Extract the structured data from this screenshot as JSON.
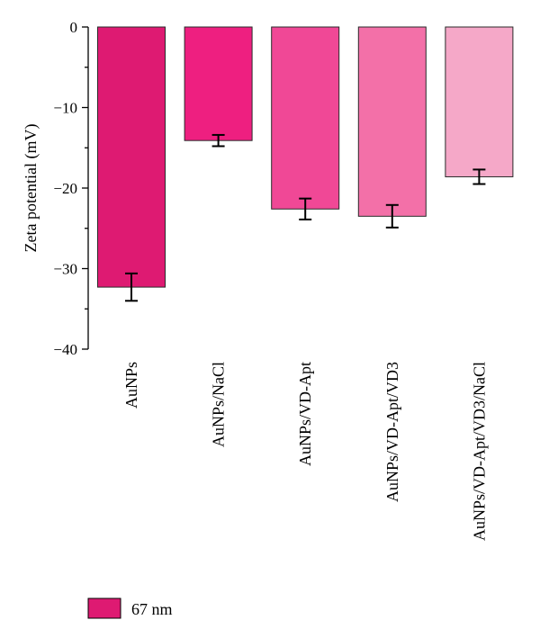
{
  "chart_data": {
    "type": "bar",
    "categories": [
      "AuNPs",
      "AuNPs/NaCl",
      "AuNPs/VD-Apt",
      "AuNPs/VD-Apt/VD3",
      "AuNPs/VD-Apt/VD3/NaCl"
    ],
    "series": [
      {
        "name": "67 nm",
        "values": [
          -32.3,
          -14.1,
          -22.6,
          -23.5,
          -18.6
        ],
        "errors": [
          1.7,
          0.7,
          1.3,
          1.4,
          0.9
        ],
        "colors": [
          "#de1a72",
          "#ee1f80",
          "#f04896",
          "#f370a8",
          "#f5a8c8"
        ]
      }
    ],
    "xlabel": "",
    "ylabel": "Zeta potential (mV)",
    "ylim": [
      -40,
      0
    ],
    "yticks": [
      0,
      -10,
      -20,
      -30,
      -40
    ],
    "ytick_labels": [
      "0",
      "−10",
      "−20",
      "−30",
      "−40"
    ],
    "legend": {
      "label": "67 nm",
      "color": "#de1a72",
      "placement": "bottom-left"
    },
    "grid": false
  }
}
